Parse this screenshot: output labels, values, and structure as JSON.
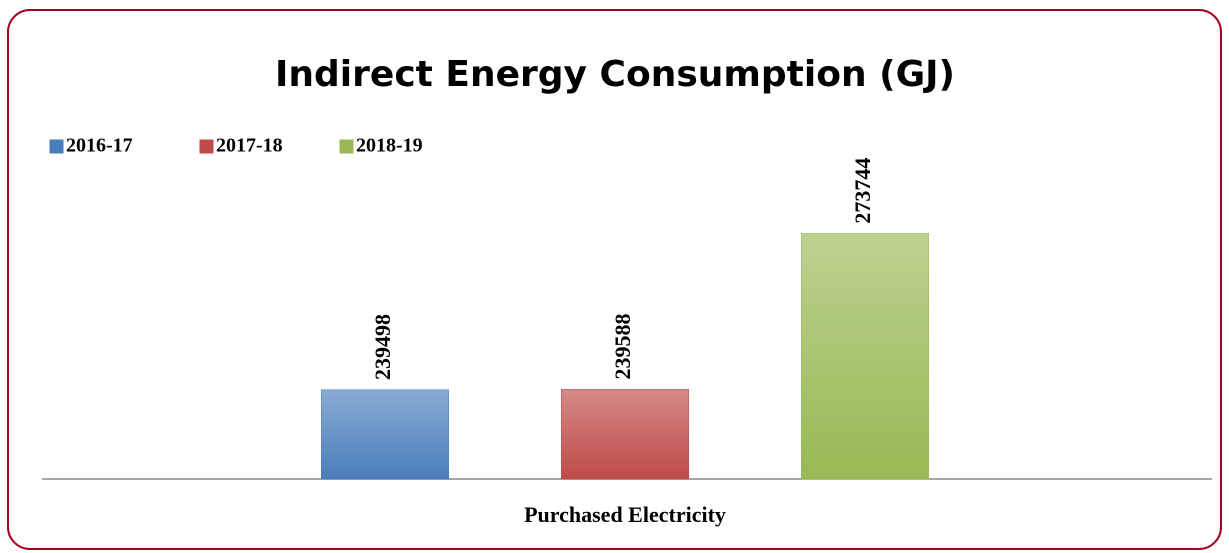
{
  "chart_data": {
    "type": "bar",
    "title": "Indirect Energy Consumption (GJ)",
    "categories": [
      "Purchased Electricity"
    ],
    "series": [
      {
        "name": "2016-17",
        "color": "#4a7ebb",
        "values": [
          239498
        ]
      },
      {
        "name": "2017-18",
        "color": "#be4b48",
        "values": [
          239588
        ]
      },
      {
        "name": "2018-19",
        "color": "#98b954",
        "values": [
          273744
        ]
      }
    ],
    "ylim": [
      220000,
      280000
    ],
    "legend": "top-left"
  }
}
